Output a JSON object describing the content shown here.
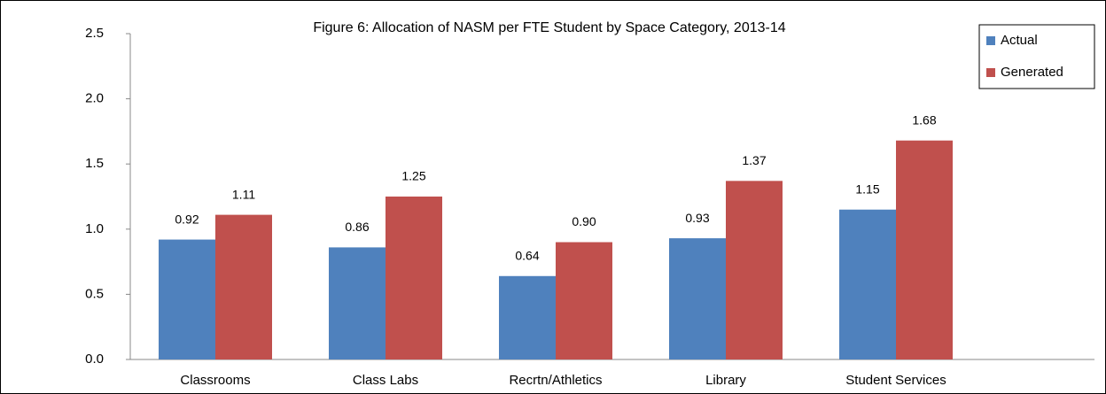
{
  "chart_data": {
    "type": "bar",
    "title": "Figure 6: Allocation of NASM per FTE Student by Space Category, 2013-14",
    "categories": [
      "Classrooms",
      "Class Labs",
      "Recrtn/Athletics",
      "Library",
      "Student Services"
    ],
    "series": [
      {
        "name": "Actual",
        "color": "#4f81bd",
        "values": [
          0.92,
          0.86,
          0.64,
          0.93,
          1.15
        ],
        "value_labels": [
          "0.92",
          "0.86",
          "0.64",
          "0.93",
          "1.15"
        ]
      },
      {
        "name": "Generated",
        "color": "#c0504d",
        "values": [
          1.11,
          1.25,
          0.9,
          1.37,
          1.68
        ],
        "value_labels": [
          "1.11",
          "1.25",
          "0.90",
          "1.37",
          "1.68"
        ]
      }
    ],
    "ylim": [
      0,
      2.5
    ],
    "yticks": [
      {
        "value": 0,
        "label": "0.0"
      },
      0.5,
      {
        "value": 1,
        "label": "1.0"
      },
      1.5,
      {
        "value": 2,
        "label": "2.0"
      },
      2.5
    ],
    "grid": false,
    "legend": "top-right"
  }
}
